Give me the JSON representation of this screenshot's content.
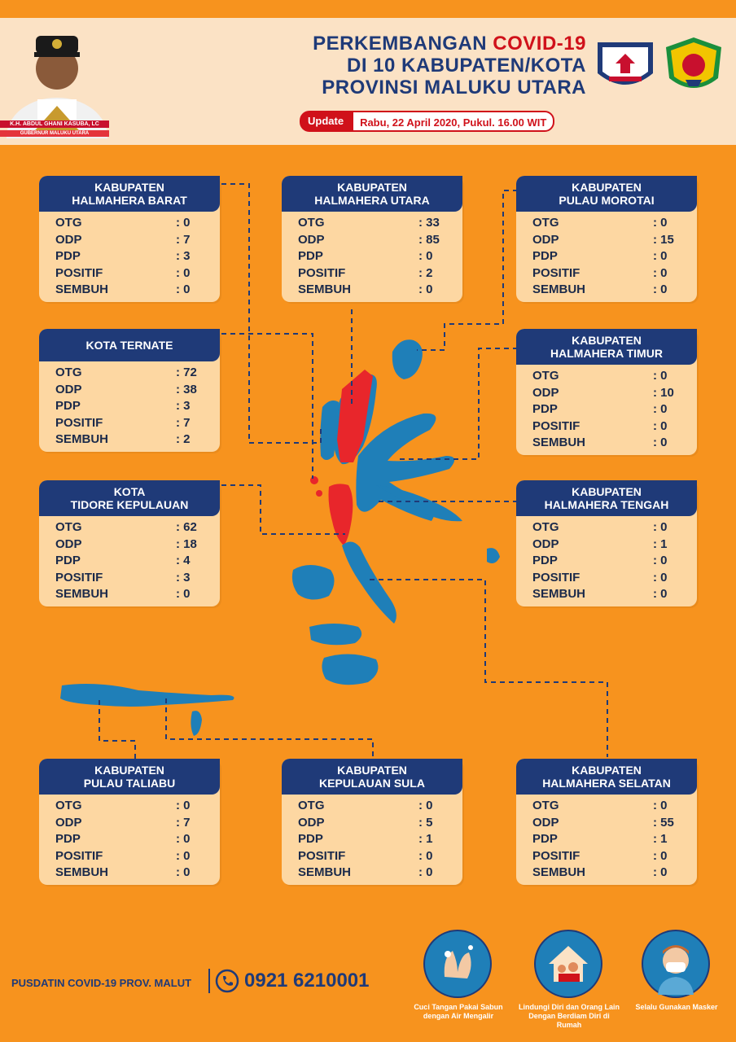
{
  "header": {
    "title_line1_prefix": "PERKEMBANGAN ",
    "title_line1_highlight": "COVID-19",
    "title_line2": "DI 10 KABUPATEN/KOTA",
    "title_line3": "PROVINSI MALUKU UTARA",
    "update_label": "Update",
    "update_value": "Rabu, 22 April 2020, Pukul. 16.00 WIT",
    "governor_name": "K.H. ABDUL GHANI KASUBA, LC",
    "governor_title": "GUBERNUR MALUKU UTARA"
  },
  "labels": {
    "otg": "OTG",
    "odp": "ODP",
    "pdp": "PDP",
    "positif": "POSITIF",
    "sembuh": "SEMBUH"
  },
  "regions": [
    {
      "name_line1": "KABUPATEN",
      "name_line2": "HALMAHERA BARAT",
      "otg": ": 0",
      "odp": ": 7",
      "pdp": ": 3",
      "positif": ": 0",
      "sembuh": ": 0"
    },
    {
      "name_line1": "KABUPATEN",
      "name_line2": "HALMAHERA UTARA",
      "otg": ": 33",
      "odp": ": 85",
      "pdp": ": 0",
      "positif": ": 2",
      "sembuh": ": 0"
    },
    {
      "name_line1": "KABUPATEN",
      "name_line2": "PULAU MOROTAI",
      "otg": ": 0",
      "odp": ": 15",
      "pdp": ": 0",
      "positif": ": 0",
      "sembuh": ": 0"
    },
    {
      "name_line1": "KOTA TERNATE",
      "name_line2": "",
      "otg": ": 72",
      "odp": ": 38",
      "pdp": ": 3",
      "positif": ": 7",
      "sembuh": ": 2"
    },
    {
      "name_line1": "KABUPATEN",
      "name_line2": "HALMAHERA  TIMUR",
      "otg": ": 0",
      "odp": ": 10",
      "pdp": ": 0",
      "positif": ": 0",
      "sembuh": ": 0"
    },
    {
      "name_line1": "KOTA",
      "name_line2": "TIDORE KEPULAUAN",
      "otg": ": 62",
      "odp": ": 18",
      "pdp": ": 4",
      "positif": ": 3",
      "sembuh": ": 0"
    },
    {
      "name_line1": "KABUPATEN",
      "name_line2": "HALMAHERA TENGAH",
      "otg": ": 0",
      "odp": ": 1",
      "pdp": ": 0",
      "positif": ": 0",
      "sembuh": ": 0"
    },
    {
      "name_line1": "KABUPATEN",
      "name_line2": "PULAU TALIABU",
      "otg": ": 0",
      "odp": ": 7",
      "pdp": ": 0",
      "positif": ": 0",
      "sembuh": ": 0"
    },
    {
      "name_line1": "KABUPATEN",
      "name_line2": "KEPULAUAN SULA",
      "otg": ": 0",
      "odp": ": 5",
      "pdp": ": 1",
      "positif": ": 0",
      "sembuh": ": 0"
    },
    {
      "name_line1": "KABUPATEN",
      "name_line2": "HALMAHERA SELATAN",
      "otg": ": 0",
      "odp": ": 55",
      "pdp": ": 1",
      "positif": ": 0",
      "sembuh": ": 0"
    }
  ],
  "footer": {
    "org": "PUSDATIN COVID-19 PROV. MALUT",
    "phone": "0921 6210001",
    "tips": [
      "Cuci Tangan Pakai Sabun dengan Air Mengalir",
      "Lindungi Diri dan Orang Lain Dengan Berdiam Diri di Rumah",
      "Selalu Gunakan Masker"
    ]
  },
  "colors": {
    "navy": "#1f3a78",
    "orange": "#f7931e",
    "card": "#fdd7a2",
    "red": "#d0111a",
    "map_blue": "#1f7fb8",
    "map_red": "#e8262b"
  }
}
